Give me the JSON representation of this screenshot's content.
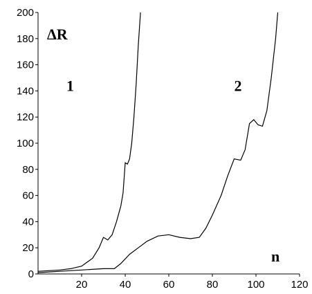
{
  "chart_data": {
    "type": "line",
    "title": "",
    "xlabel": "n",
    "ylabel": "ΔR",
    "xlim": [
      0,
      120
    ],
    "ylim": [
      0,
      200
    ],
    "x_ticks": [
      20,
      40,
      60,
      80,
      100,
      120
    ],
    "y_ticks": [
      0,
      20,
      40,
      60,
      80,
      100,
      120,
      140,
      160,
      180,
      200
    ],
    "grid": false,
    "series": [
      {
        "name": "1",
        "color": "#000000",
        "points": [
          [
            0,
            2
          ],
          [
            10,
            3
          ],
          [
            15,
            4
          ],
          [
            20,
            6
          ],
          [
            25,
            12
          ],
          [
            28,
            20
          ],
          [
            30,
            28
          ],
          [
            32,
            26
          ],
          [
            34,
            30
          ],
          [
            36,
            40
          ],
          [
            38,
            52
          ],
          [
            39,
            62
          ],
          [
            40,
            85
          ],
          [
            41,
            84
          ],
          [
            42,
            88
          ],
          [
            43,
            100
          ],
          [
            44,
            120
          ],
          [
            45,
            145
          ],
          [
            46,
            175
          ],
          [
            47,
            200
          ]
        ],
        "label_pos": [
          13,
          140
        ]
      },
      {
        "name": "2",
        "color": "#000000",
        "points": [
          [
            0,
            1
          ],
          [
            10,
            2
          ],
          [
            20,
            3
          ],
          [
            30,
            4
          ],
          [
            35,
            4
          ],
          [
            38,
            8
          ],
          [
            42,
            15
          ],
          [
            46,
            20
          ],
          [
            50,
            25
          ],
          [
            55,
            29
          ],
          [
            60,
            30
          ],
          [
            65,
            28
          ],
          [
            70,
            27
          ],
          [
            74,
            28
          ],
          [
            77,
            35
          ],
          [
            80,
            45
          ],
          [
            84,
            60
          ],
          [
            87,
            75
          ],
          [
            90,
            88
          ],
          [
            93,
            87
          ],
          [
            95,
            95
          ],
          [
            97,
            115
          ],
          [
            99,
            118
          ],
          [
            101,
            114
          ],
          [
            103,
            113
          ],
          [
            105,
            125
          ],
          [
            107,
            150
          ],
          [
            109,
            180
          ],
          [
            110,
            200
          ]
        ],
        "label_pos": [
          90,
          140
        ]
      }
    ]
  }
}
